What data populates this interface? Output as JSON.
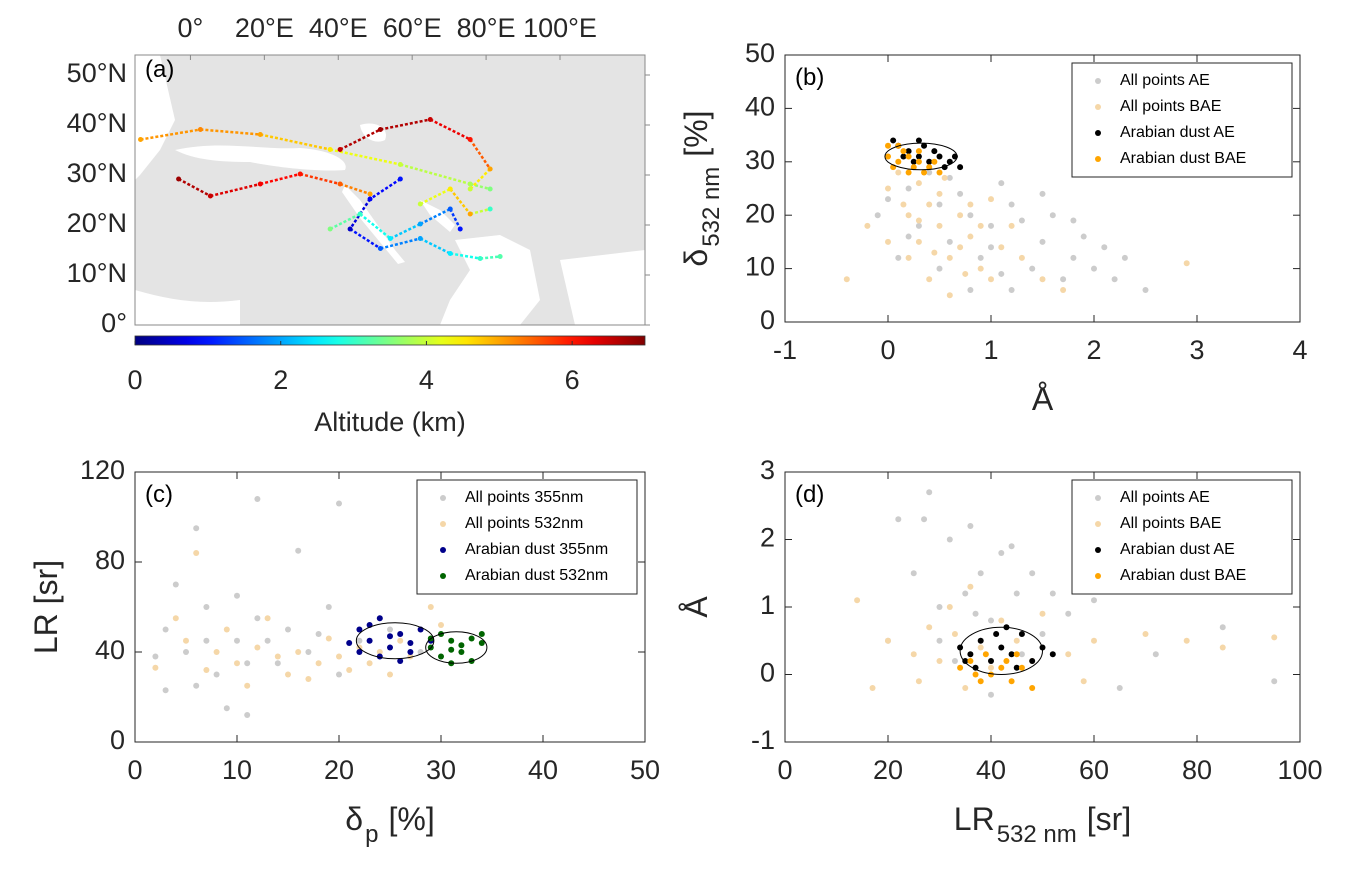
{
  "chart_data": [
    {
      "type": "map",
      "panel_label": "(a)",
      "xlim": [
        -15,
        123
      ],
      "ylim": [
        0,
        54
      ],
      "xticks": [
        {
          "value": 0,
          "label": "0°"
        },
        {
          "value": 20,
          "label": "20°E"
        },
        {
          "value": 40,
          "label": "40°E"
        },
        {
          "value": 60,
          "label": "60°E"
        },
        {
          "value": 80,
          "label": "80°E"
        },
        {
          "value": 100,
          "label": "100°E"
        }
      ],
      "yticks": [
        {
          "value": 0,
          "label": "0°"
        },
        {
          "value": 10,
          "label": "10°N"
        },
        {
          "value": 20,
          "label": "20°N"
        },
        {
          "value": 30,
          "label": "30°N"
        },
        {
          "value": 40,
          "label": "40°N"
        },
        {
          "value": 50,
          "label": "50°N"
        }
      ],
      "colorbar": {
        "label": "Altitude (km)",
        "lim": [
          0,
          7
        ],
        "ticks": [
          0,
          2,
          4,
          6
        ],
        "colormap": "jet"
      },
      "trajectories": [
        {
          "lon": [
            -13.5,
            2.7,
            18.9,
            37.8,
            56.8,
            75.7,
            81.1
          ],
          "lat": [
            37.1,
            39.1,
            38.1,
            35.1,
            32.1,
            28.2,
            27.2
          ],
          "altitude": [
            5,
            5.2,
            5,
            4.5,
            4,
            3.8,
            3.5
          ]
        },
        {
          "lon": [
            -3.2,
            5.4,
            18.9,
            29.7,
            40.5,
            48.6
          ],
          "lat": [
            29.2,
            25.8,
            28.2,
            30.2,
            28.2,
            26.2
          ],
          "altitude": [
            6.8,
            6.5,
            6.2,
            6,
            5.5,
            5
          ]
        },
        {
          "lon": [
            40.5,
            51.4,
            64.9,
            75.7,
            81.1,
            75.7
          ],
          "lat": [
            35.1,
            39.1,
            41.1,
            37.1,
            31.2,
            27.2
          ],
          "altitude": [
            6.5,
            6.8,
            6.5,
            6,
            5,
            4
          ]
        },
        {
          "lon": [
            56.8,
            48.6,
            43.2,
            51.4,
            62.2,
            70.3,
            78.4,
            83.8
          ],
          "lat": [
            29.2,
            25.2,
            19.2,
            15.3,
            17.3,
            14.3,
            13.3,
            13.7
          ],
          "altitude": [
            1,
            0.8,
            0.5,
            1.5,
            2,
            2.5,
            3,
            3.2
          ]
        },
        {
          "lon": [
            37.8,
            45.9,
            54.1,
            62.2,
            70.3,
            73.0
          ],
          "lat": [
            19.2,
            22.2,
            17.3,
            20.2,
            23.2,
            19.2
          ],
          "altitude": [
            3.5,
            3,
            2.5,
            2,
            1.5,
            1
          ]
        },
        {
          "lon": [
            62.2,
            70.3,
            75.7,
            81.1
          ],
          "lat": [
            24.2,
            27.2,
            22.2,
            23.2
          ],
          "altitude": [
            4,
            4.5,
            5,
            3
          ]
        }
      ]
    },
    {
      "type": "scatter",
      "panel_label": "(b)",
      "xlabel": [
        "Å"
      ],
      "ylabel": [
        "δ",
        "532 nm",
        "[%]"
      ],
      "xlim": [
        -1,
        4
      ],
      "ylim": [
        0,
        50
      ],
      "xticks": [
        -1,
        0,
        1,
        2,
        3,
        4
      ],
      "yticks": [
        0,
        10,
        20,
        30,
        40,
        50
      ],
      "legend": "upper right",
      "series": [
        {
          "name": "All points AE",
          "color": "#cccccc",
          "x": [
            0.2,
            0.5,
            0.8,
            1.0,
            1.2,
            1.5,
            1.8,
            2.0,
            2.2,
            0.3,
            0.6,
            0.9,
            1.1,
            1.3,
            1.6,
            1.9,
            2.5,
            0.1,
            -0.1,
            0.4,
            0.7,
            1.0,
            1.4,
            1.7,
            2.1,
            0.5,
            0.8,
            1.2,
            0.2,
            1.5,
            2.3,
            1.8,
            0.0,
            0.6,
            1.1
          ],
          "y": [
            25,
            22,
            20,
            18,
            22,
            15,
            12,
            10,
            8,
            18,
            15,
            12,
            26,
            19,
            20,
            16,
            6,
            12,
            20,
            28,
            24,
            14,
            10,
            8,
            14,
            10,
            6,
            6,
            16,
            24,
            12,
            19,
            23,
            27,
            9
          ]
        },
        {
          "name": "All points BAE",
          "color": "#f5d7a8",
          "x": [
            0.0,
            0.2,
            0.3,
            0.4,
            0.5,
            0.6,
            0.7,
            0.8,
            0.9,
            1.0,
            0.1,
            0.3,
            0.5,
            0.2,
            0.4,
            0.6,
            0.8,
            1.1,
            1.3,
            1.5,
            1.7,
            -0.2,
            -0.4,
            0.0,
            0.3,
            0.7,
            0.9,
            1.2,
            2.9,
            1.0,
            0.45,
            0.55,
            0.15,
            0.75
          ],
          "y": [
            25,
            20,
            15,
            22,
            18,
            12,
            20,
            16,
            10,
            8,
            28,
            26,
            24,
            12,
            8,
            5,
            22,
            14,
            12,
            8,
            6,
            18,
            8,
            15,
            19,
            14,
            18,
            18,
            11,
            23,
            13,
            27,
            22,
            9
          ]
        },
        {
          "name": "Arabian dust AE",
          "color": "#000000",
          "x": [
            0.1,
            0.2,
            0.3,
            0.35,
            0.4,
            0.5,
            0.55,
            0.6,
            0.7,
            0.25,
            0.45,
            0.15,
            0.05,
            0.65,
            0.3
          ],
          "y": [
            33,
            32,
            31,
            33,
            30,
            31,
            29,
            30,
            29,
            30,
            32,
            31,
            34,
            31,
            34
          ]
        },
        {
          "name": "Arabian dust BAE",
          "color": "#ffa500",
          "x": [
            0.0,
            0.05,
            0.1,
            0.15,
            0.2,
            0.25,
            0.3,
            0.35,
            0.4,
            0.5,
            0.1,
            0.2,
            0.0,
            0.3,
            0.45
          ],
          "y": [
            31,
            29,
            30,
            32,
            28,
            29,
            30,
            28,
            29,
            28,
            33,
            31,
            33,
            32,
            30
          ]
        }
      ],
      "ellipses": [
        {
          "center": [
            0.32,
            31
          ],
          "radius": [
            0.35,
            2.5
          ]
        }
      ]
    },
    {
      "type": "scatter",
      "panel_label": "(c)",
      "xlabel": [
        "δ",
        "p",
        "[%]"
      ],
      "ylabel": [
        "LR [sr]"
      ],
      "xlim": [
        0,
        50
      ],
      "ylim": [
        0,
        120
      ],
      "xticks": [
        0,
        10,
        20,
        30,
        40,
        50
      ],
      "yticks": [
        0,
        40,
        80,
        120
      ],
      "legend": "upper right",
      "series": [
        {
          "name": "All points 355nm",
          "color": "#cccccc",
          "x": [
            3,
            5,
            7,
            8,
            10,
            12,
            14,
            15,
            17,
            19,
            20,
            22,
            25,
            28,
            6,
            9,
            11,
            4,
            6,
            12,
            20,
            16,
            10,
            2,
            13,
            18,
            24,
            7,
            3,
            11
          ],
          "y": [
            50,
            40,
            60,
            30,
            45,
            55,
            35,
            50,
            40,
            60,
            30,
            45,
            50,
            40,
            25,
            15,
            12,
            70,
            95,
            108,
            106,
            85,
            65,
            38,
            45,
            48,
            55,
            45,
            23,
            35
          ]
        },
        {
          "name": "All points 532nm",
          "color": "#f5d7a8",
          "x": [
            5,
            8,
            10,
            12,
            14,
            16,
            18,
            20,
            22,
            24,
            26,
            28,
            29,
            6,
            9,
            15,
            17,
            21,
            23,
            11,
            13,
            19,
            25,
            7,
            4,
            27,
            30,
            2
          ],
          "y": [
            45,
            40,
            35,
            42,
            38,
            40,
            35,
            38,
            42,
            40,
            45,
            50,
            60,
            84,
            50,
            30,
            28,
            32,
            35,
            25,
            55,
            46,
            30,
            32,
            55,
            38,
            52,
            33
          ]
        },
        {
          "name": "Arabian dust 355nm",
          "color": "#00008b",
          "x": [
            22,
            23,
            24,
            25,
            26,
            27,
            28,
            22,
            24,
            26,
            23,
            25,
            27,
            29,
            21
          ],
          "y": [
            50,
            45,
            55,
            42,
            48,
            40,
            50,
            40,
            38,
            36,
            52,
            47,
            44,
            45,
            44
          ]
        },
        {
          "name": "Arabian dust 532nm",
          "color": "#006400",
          "x": [
            29,
            30,
            31,
            32,
            33,
            34,
            30,
            31,
            32,
            33,
            29,
            34,
            31
          ],
          "y": [
            42,
            38,
            45,
            40,
            46,
            48,
            48,
            35,
            43,
            36,
            46,
            44,
            41
          ]
        }
      ],
      "ellipses": [
        {
          "center": [
            25.5,
            45
          ],
          "radius": [
            3.8,
            8
          ]
        },
        {
          "center": [
            31.5,
            42
          ],
          "radius": [
            3,
            7
          ]
        }
      ]
    },
    {
      "type": "scatter",
      "panel_label": "(d)",
      "xlabel": [
        "LR",
        "532 nm",
        "[sr]"
      ],
      "ylabel": [
        "Å"
      ],
      "xlim": [
        0,
        100
      ],
      "ylim": [
        -1,
        3
      ],
      "xticks": [
        0,
        20,
        40,
        60,
        80,
        100
      ],
      "yticks": [
        -1,
        0,
        1,
        2,
        3
      ],
      "legend": "upper right",
      "series": [
        {
          "name": "All points AE",
          "color": "#cccccc",
          "x": [
            20,
            25,
            28,
            30,
            32,
            35,
            36,
            38,
            40,
            42,
            45,
            48,
            50,
            55,
            60,
            65,
            72,
            85,
            95,
            33,
            40,
            27,
            44,
            52,
            30,
            37,
            46,
            22
          ],
          "y": [
            0.5,
            1.5,
            2.7,
            1,
            2,
            1.2,
            2.2,
            1.5,
            0.8,
            1.8,
            1.2,
            1.5,
            0.6,
            0.9,
            1.1,
            -0.2,
            0.3,
            0.7,
            -0.1,
            0.2,
            -0.3,
            2.3,
            1.9,
            1.2,
            0.5,
            0.9,
            0.3,
            2.3
          ]
        },
        {
          "name": "All points BAE",
          "color": "#f5d7a8",
          "x": [
            14,
            17,
            20,
            25,
            28,
            30,
            33,
            35,
            38,
            40,
            42,
            45,
            48,
            50,
            55,
            60,
            70,
            78,
            85,
            95,
            36,
            26,
            32,
            58
          ],
          "y": [
            1.1,
            -0.2,
            0.5,
            0.3,
            0.7,
            0.2,
            0.6,
            -0.2,
            0.4,
            0.1,
            0.8,
            0.5,
            0.2,
            0.9,
            0.3,
            0.5,
            0.6,
            0.5,
            0.4,
            0.55,
            1.3,
            -0.1,
            1.0,
            -0.1
          ]
        },
        {
          "name": "Arabian dust AE",
          "color": "#000000",
          "x": [
            34,
            36,
            38,
            40,
            42,
            44,
            46,
            48,
            50,
            37,
            41,
            45,
            52,
            35,
            43
          ],
          "y": [
            0.4,
            0.3,
            0.5,
            0.2,
            0.4,
            0.3,
            0.6,
            0.2,
            0.4,
            0.1,
            0.6,
            0.1,
            0.3,
            0.2,
            0.7
          ]
        },
        {
          "name": "Arabian dust BAE",
          "color": "#ffa500",
          "x": [
            34,
            36,
            38,
            40,
            42,
            44,
            46,
            48,
            39,
            43,
            37,
            45
          ],
          "y": [
            0.1,
            0.2,
            -0.1,
            0.0,
            0.1,
            -0.1,
            0.1,
            -0.2,
            0.3,
            0.2,
            0.0,
            0.3
          ]
        }
      ],
      "ellipses": [
        {
          "center": [
            42,
            0.35
          ],
          "radius": [
            8,
            0.35
          ]
        }
      ]
    }
  ]
}
